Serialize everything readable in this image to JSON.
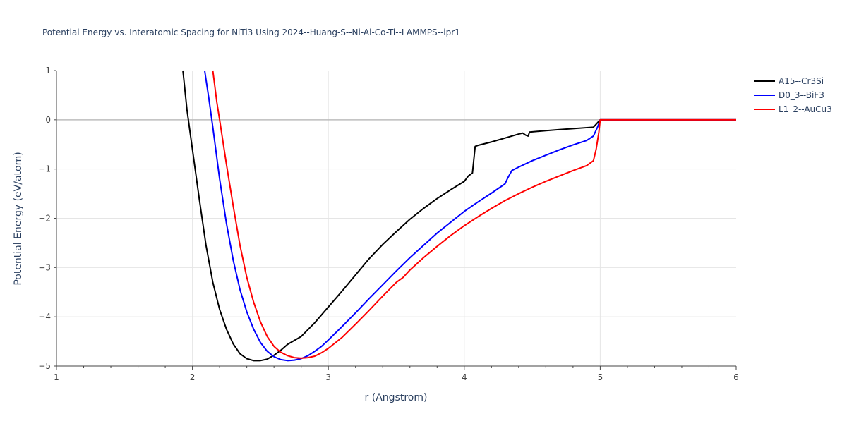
{
  "chart_data": {
    "type": "line",
    "title": "Potential Energy vs. Interatomic Spacing for NiTi3 Using 2024--Huang-S--Ni-Al-Co-Ti--LAMMPS--ipr1",
    "xlabel": "r (Angstrom)",
    "ylabel": "Potential Energy (eV/atom)",
    "xlim": [
      1,
      6
    ],
    "ylim": [
      -5,
      1
    ],
    "x_ticks": [
      "1",
      "2",
      "3",
      "4",
      "5",
      "6"
    ],
    "y_ticks": [
      "1",
      "0",
      "−1",
      "−2",
      "−3",
      "−4",
      "−5"
    ],
    "grid": true,
    "legend_position": "top-right",
    "series": [
      {
        "name": "A15--Cr3Si",
        "color": "#000000",
        "points": [
          [
            1.93,
            1.0
          ],
          [
            1.96,
            0.2
          ],
          [
            2.0,
            -0.6
          ],
          [
            2.05,
            -1.6
          ],
          [
            2.1,
            -2.55
          ],
          [
            2.15,
            -3.3
          ],
          [
            2.2,
            -3.85
          ],
          [
            2.25,
            -4.25
          ],
          [
            2.3,
            -4.55
          ],
          [
            2.35,
            -4.75
          ],
          [
            2.4,
            -4.85
          ],
          [
            2.45,
            -4.89
          ],
          [
            2.5,
            -4.89
          ],
          [
            2.55,
            -4.86
          ],
          [
            2.6,
            -4.78
          ],
          [
            2.65,
            -4.68
          ],
          [
            2.7,
            -4.56
          ],
          [
            2.8,
            -4.4
          ],
          [
            2.9,
            -4.12
          ],
          [
            3.0,
            -3.8
          ],
          [
            3.1,
            -3.48
          ],
          [
            3.2,
            -3.15
          ],
          [
            3.3,
            -2.82
          ],
          [
            3.4,
            -2.53
          ],
          [
            3.5,
            -2.27
          ],
          [
            3.6,
            -2.02
          ],
          [
            3.7,
            -1.8
          ],
          [
            3.8,
            -1.6
          ],
          [
            3.9,
            -1.42
          ],
          [
            4.0,
            -1.25
          ],
          [
            4.03,
            -1.14
          ],
          [
            4.06,
            -1.08
          ],
          [
            4.08,
            -0.54
          ],
          [
            4.1,
            -0.52
          ],
          [
            4.2,
            -0.45
          ],
          [
            4.3,
            -0.37
          ],
          [
            4.4,
            -0.29
          ],
          [
            4.43,
            -0.27
          ],
          [
            4.45,
            -0.31
          ],
          [
            4.47,
            -0.33
          ],
          [
            4.48,
            -0.25
          ],
          [
            4.6,
            -0.22
          ],
          [
            4.7,
            -0.2
          ],
          [
            4.8,
            -0.18
          ],
          [
            4.95,
            -0.15
          ],
          [
            5.0,
            0.0
          ],
          [
            5.5,
            0.0
          ],
          [
            6.0,
            0.0
          ]
        ]
      },
      {
        "name": "D0_3--BiF3",
        "color": "#0000ff",
        "points": [
          [
            2.09,
            1.0
          ],
          [
            2.12,
            0.45
          ],
          [
            2.15,
            -0.15
          ],
          [
            2.2,
            -1.2
          ],
          [
            2.25,
            -2.1
          ],
          [
            2.3,
            -2.85
          ],
          [
            2.35,
            -3.45
          ],
          [
            2.4,
            -3.9
          ],
          [
            2.45,
            -4.25
          ],
          [
            2.5,
            -4.52
          ],
          [
            2.55,
            -4.7
          ],
          [
            2.6,
            -4.81
          ],
          [
            2.65,
            -4.87
          ],
          [
            2.7,
            -4.89
          ],
          [
            2.75,
            -4.88
          ],
          [
            2.8,
            -4.85
          ],
          [
            2.85,
            -4.79
          ],
          [
            2.9,
            -4.7
          ],
          [
            2.95,
            -4.6
          ],
          [
            3.0,
            -4.47
          ],
          [
            3.1,
            -4.2
          ],
          [
            3.2,
            -3.92
          ],
          [
            3.3,
            -3.63
          ],
          [
            3.4,
            -3.35
          ],
          [
            3.5,
            -3.07
          ],
          [
            3.6,
            -2.8
          ],
          [
            3.7,
            -2.55
          ],
          [
            3.8,
            -2.3
          ],
          [
            3.9,
            -2.08
          ],
          [
            4.0,
            -1.86
          ],
          [
            4.1,
            -1.67
          ],
          [
            4.2,
            -1.49
          ],
          [
            4.3,
            -1.3
          ],
          [
            4.32,
            -1.18
          ],
          [
            4.35,
            -1.03
          ],
          [
            4.4,
            -0.96
          ],
          [
            4.5,
            -0.83
          ],
          [
            4.6,
            -0.72
          ],
          [
            4.7,
            -0.61
          ],
          [
            4.8,
            -0.51
          ],
          [
            4.9,
            -0.42
          ],
          [
            4.95,
            -0.33
          ],
          [
            4.98,
            -0.15
          ],
          [
            5.0,
            0.0
          ],
          [
            5.5,
            0.0
          ],
          [
            6.0,
            0.0
          ]
        ]
      },
      {
        "name": "L1_2--AuCu3",
        "color": "#ff0000",
        "points": [
          [
            2.15,
            1.0
          ],
          [
            2.18,
            0.35
          ],
          [
            2.2,
            0.0
          ],
          [
            2.25,
            -0.9
          ],
          [
            2.3,
            -1.75
          ],
          [
            2.35,
            -2.55
          ],
          [
            2.4,
            -3.2
          ],
          [
            2.45,
            -3.7
          ],
          [
            2.5,
            -4.1
          ],
          [
            2.55,
            -4.4
          ],
          [
            2.6,
            -4.6
          ],
          [
            2.65,
            -4.72
          ],
          [
            2.7,
            -4.79
          ],
          [
            2.75,
            -4.83
          ],
          [
            2.8,
            -4.84
          ],
          [
            2.85,
            -4.83
          ],
          [
            2.9,
            -4.8
          ],
          [
            2.95,
            -4.73
          ],
          [
            3.0,
            -4.64
          ],
          [
            3.1,
            -4.42
          ],
          [
            3.2,
            -4.15
          ],
          [
            3.3,
            -3.87
          ],
          [
            3.4,
            -3.58
          ],
          [
            3.5,
            -3.3
          ],
          [
            3.55,
            -3.2
          ],
          [
            3.6,
            -3.05
          ],
          [
            3.7,
            -2.8
          ],
          [
            3.8,
            -2.57
          ],
          [
            3.9,
            -2.35
          ],
          [
            4.0,
            -2.15
          ],
          [
            4.1,
            -1.97
          ],
          [
            4.2,
            -1.8
          ],
          [
            4.3,
            -1.64
          ],
          [
            4.4,
            -1.5
          ],
          [
            4.5,
            -1.37
          ],
          [
            4.6,
            -1.25
          ],
          [
            4.7,
            -1.14
          ],
          [
            4.8,
            -1.03
          ],
          [
            4.9,
            -0.93
          ],
          [
            4.95,
            -0.83
          ],
          [
            4.97,
            -0.6
          ],
          [
            4.99,
            -0.25
          ],
          [
            5.0,
            0.0
          ],
          [
            5.5,
            0.0
          ],
          [
            6.0,
            0.0
          ]
        ]
      }
    ]
  }
}
